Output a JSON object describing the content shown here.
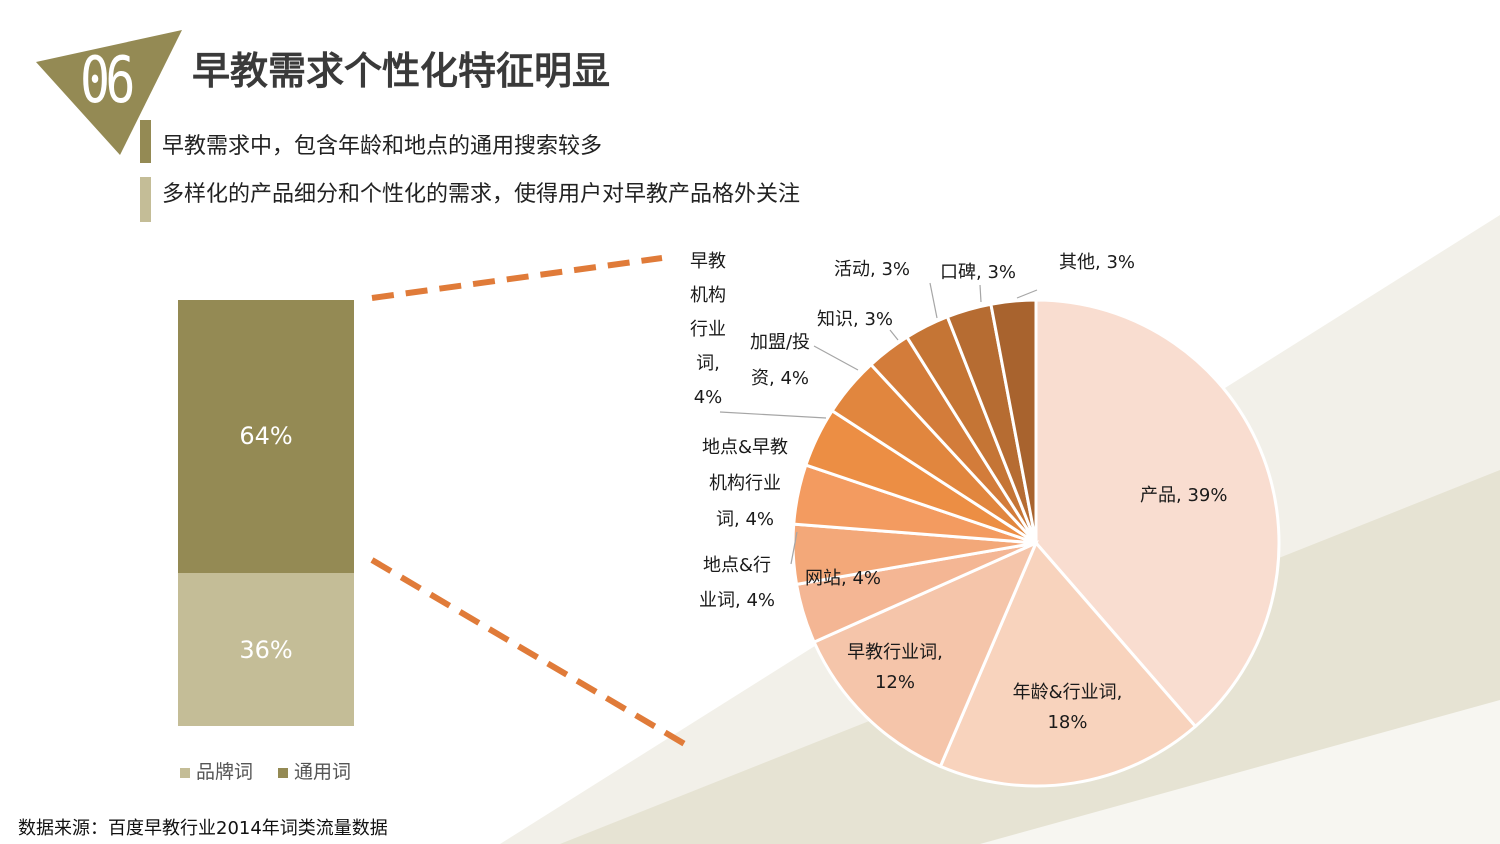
{
  "header": {
    "badge_number": "06",
    "title": "早教需求个性化特征明显"
  },
  "bullets": [
    {
      "text": "早教需求中，包含年龄和地点的通用搜索较多",
      "color": "#948a54"
    },
    {
      "text": "多样化的产品细分和个性化的需求，使得用户对早教产品格外关注",
      "color": "#c4bd97"
    }
  ],
  "colors": {
    "badge": "#948a54",
    "connector": "#e07b39",
    "bg_shape": "#e8e5d8"
  },
  "chart_data": [
    {
      "type": "bar",
      "stacked": true,
      "series": [
        {
          "name": "品牌词",
          "value": 36,
          "label": "36%",
          "color": "#c4bd97"
        },
        {
          "name": "通用词",
          "value": 64,
          "label": "64%",
          "color": "#948a54"
        }
      ],
      "legend": [
        {
          "name": "品牌词",
          "color": "#c4bd97"
        },
        {
          "name": "通用词",
          "color": "#948a54"
        }
      ],
      "ylim": [
        0,
        100
      ]
    },
    {
      "type": "pie",
      "start": "top, clockwise",
      "slices": [
        {
          "name": "产品",
          "value": 39,
          "label": "产品, 39%",
          "color": "#f9ddd0"
        },
        {
          "name": "年龄&行业词",
          "value": 18,
          "label": "年龄&行业词,\n18%",
          "color": "#f8d3bd"
        },
        {
          "name": "早教行业词",
          "value": 12,
          "label": "早教行业词,\n12%",
          "color": "#f5c5aa"
        },
        {
          "name": "网站",
          "value": 4,
          "label": "网站, 4%",
          "color": "#f4b694"
        },
        {
          "name": "地点&行业词",
          "value": 4,
          "label": "地点&行\n业词, 4%",
          "color": "#f3a879"
        },
        {
          "name": "地点&早教机构行业词",
          "value": 4,
          "label": "地点&早教\n机构行业\n词, 4%",
          "color": "#f39b60"
        },
        {
          "name": "早教机构行业词",
          "value": 4,
          "label": "早教\n机构\n行业\n词,\n4%",
          "color": "#ec8e44"
        },
        {
          "name": "加盟/投资",
          "value": 4,
          "label": "加盟/投\n资, 4%",
          "color": "#e1863e"
        },
        {
          "name": "知识",
          "value": 3,
          "label": "知识, 3%",
          "color": "#d37c3a"
        },
        {
          "name": "活动",
          "value": 3,
          "label": "活动, 3%",
          "color": "#c57535"
        },
        {
          "name": "口碑",
          "value": 3,
          "label": "口碑, 3%",
          "color": "#b66c32"
        },
        {
          "name": "其他",
          "value": 3,
          "label": "其他, 3%",
          "color": "#a8632e"
        }
      ]
    }
  ],
  "footer": {
    "source": "数据来源：百度早教行业2014年词类流量数据"
  }
}
